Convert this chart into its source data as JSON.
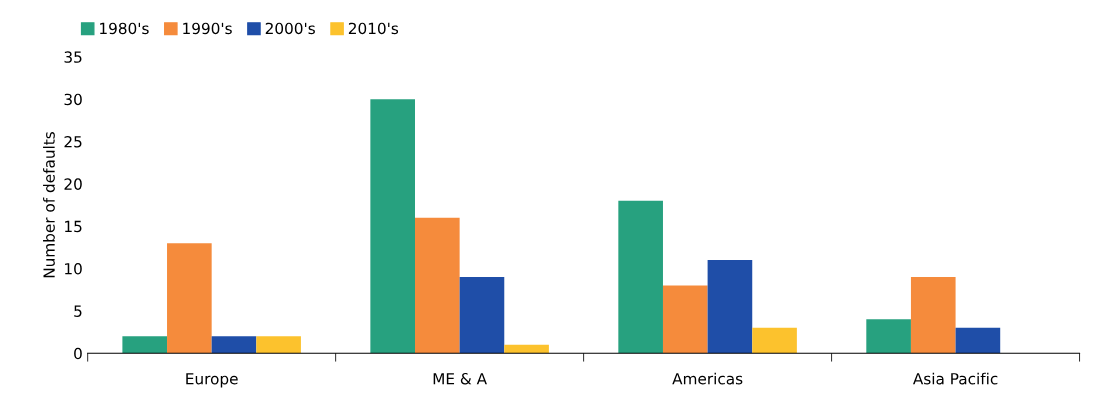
{
  "chart_data": {
    "type": "bar",
    "ylabel": "Number of defaults",
    "categories": [
      "Europe",
      "ME & A",
      "Americas",
      "Asia Pacific"
    ],
    "series": [
      {
        "name": "1980's",
        "color": "#27a17f",
        "values": [
          2,
          30,
          18,
          4
        ]
      },
      {
        "name": "1990's",
        "color": "#f58b3c",
        "values": [
          13,
          16,
          8,
          9
        ]
      },
      {
        "name": "2000's",
        "color": "#1f4ea8",
        "values": [
          2,
          9,
          11,
          3
        ]
      },
      {
        "name": "2010's",
        "color": "#fcc22d",
        "values": [
          2,
          1,
          3,
          null
        ]
      }
    ],
    "ylim": [
      0,
      35
    ],
    "yticks": [
      0,
      5,
      10,
      15,
      20,
      25,
      30,
      35
    ],
    "grid": false,
    "legend": "top left"
  }
}
